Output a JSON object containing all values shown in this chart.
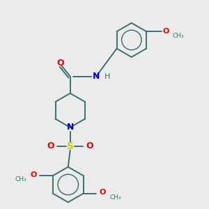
{
  "background_color": "#ebebeb",
  "bond_color": "#3a7070",
  "bond_width": 1.4,
  "atom_colors": {
    "N": "#0000ee",
    "O": "#ee0000",
    "S": "#cccc00",
    "C": "#3a7070",
    "H": "#3a7070"
  },
  "figsize": [
    3.0,
    3.0
  ],
  "dpi": 100,
  "xlim": [
    0,
    10
  ],
  "ylim": [
    0,
    10
  ]
}
